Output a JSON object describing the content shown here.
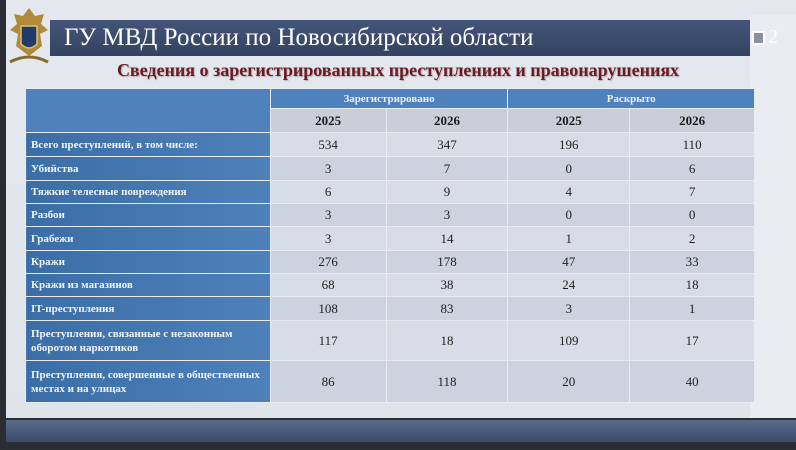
{
  "header": {
    "title": "ГУ МВД России по Новосибирской области",
    "page_number": "2"
  },
  "subtitle": "Сведения о зарегистрированных преступлениях и правонарушениях",
  "table": {
    "groups": [
      "Зарегистрировано",
      "Раскрыто"
    ],
    "years": [
      "2025",
      "2026",
      "2025",
      "2026"
    ],
    "rows": [
      {
        "label": "Всего преступлений, в том числе:",
        "values": [
          "534",
          "347",
          "196",
          "110"
        ]
      },
      {
        "label": "Убийства",
        "values": [
          "3",
          "7",
          "0",
          "6"
        ]
      },
      {
        "label": "Тяжкие телесные повреждения",
        "values": [
          "6",
          "9",
          "4",
          "7"
        ]
      },
      {
        "label": "Разбои",
        "values": [
          "3",
          "3",
          "0",
          "0"
        ]
      },
      {
        "label": "Грабежи",
        "values": [
          "3",
          "14",
          "1",
          "2"
        ]
      },
      {
        "label": "Кражи",
        "values": [
          "276",
          "178",
          "47",
          "33"
        ]
      },
      {
        "label": "Кражи из магазинов",
        "values": [
          "68",
          "38",
          "24",
          "18"
        ]
      },
      {
        "label": "IT-преступления",
        "values": [
          "108",
          "83",
          "3",
          "1"
        ]
      },
      {
        "label": "Преступления, связанные с незаконным оборотом наркотиков",
        "values": [
          "117",
          "18",
          "109",
          "17"
        ]
      },
      {
        "label": "Преступления, совершенные в общественных местах и на улицах",
        "values": [
          "86",
          "118",
          "20",
          "40"
        ]
      }
    ]
  },
  "colors": {
    "title_bar": "#3b4a6b",
    "subtitle": "#6b1a28",
    "header_blue": "#4f82bd"
  }
}
